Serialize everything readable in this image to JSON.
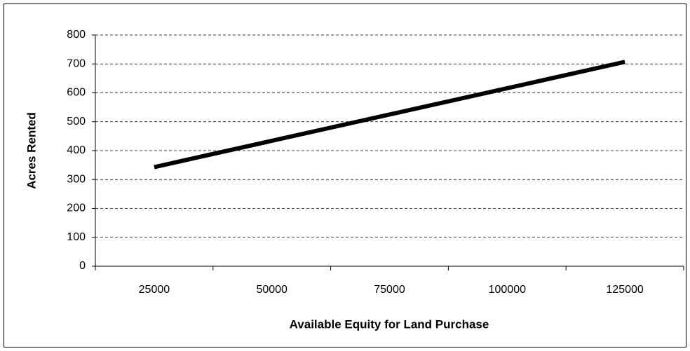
{
  "chart_data": {
    "type": "line",
    "x_label": "Available Equity for Land Purchase",
    "y_label": "Acres Rented",
    "categories": [
      "25000",
      "50000",
      "75000",
      "100000",
      "125000"
    ],
    "values": [
      343,
      434,
      525,
      616,
      707
    ],
    "color": "#000000",
    "ylim": [
      0,
      800
    ],
    "yticks": [
      0,
      100,
      200,
      300,
      400,
      500,
      600,
      700,
      800
    ],
    "grid": true
  }
}
